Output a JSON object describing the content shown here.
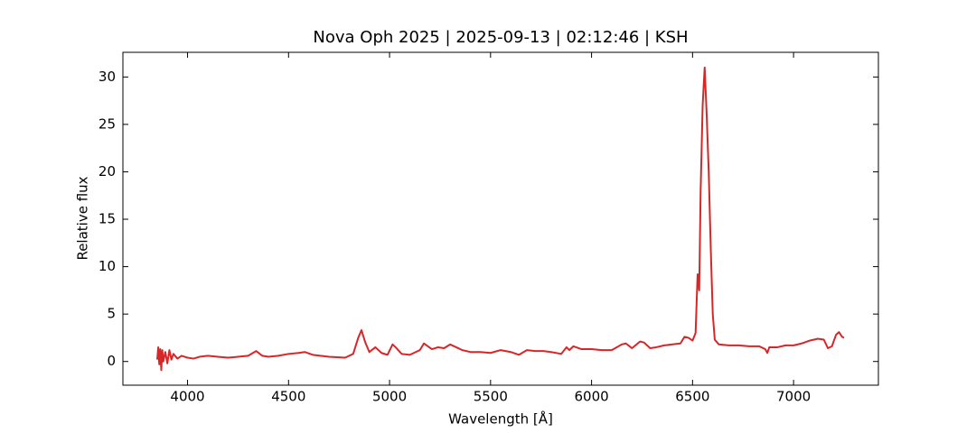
{
  "chart_data": {
    "type": "line",
    "title": "Nova Oph 2025 | 2025-09-13 | 02:12:46 | KSH",
    "x_label": "Wavelength [Å]",
    "y_label": "Relative flux",
    "color": "#d62728",
    "x": [
      3850,
      3855,
      3860,
      3865,
      3870,
      3875,
      3880,
      3890,
      3900,
      3910,
      3920,
      3930,
      3950,
      3970,
      4000,
      4030,
      4060,
      4100,
      4150,
      4200,
      4250,
      4300,
      4340,
      4370,
      4400,
      4450,
      4500,
      4550,
      4580,
      4620,
      4700,
      4780,
      4820,
      4845,
      4861,
      4880,
      4900,
      4930,
      4960,
      4990,
      5015,
      5030,
      5060,
      5100,
      5150,
      5170,
      5190,
      5210,
      5240,
      5270,
      5300,
      5330,
      5360,
      5400,
      5450,
      5500,
      5550,
      5600,
      5640,
      5680,
      5720,
      5760,
      5800,
      5850,
      5876,
      5890,
      5910,
      5950,
      6000,
      6050,
      6100,
      6150,
      6170,
      6200,
      6240,
      6260,
      6290,
      6320,
      6360,
      6400,
      6440,
      6460,
      6480,
      6500,
      6515,
      6525,
      6533,
      6540,
      6550,
      6560,
      6570,
      6580,
      6590,
      6600,
      6610,
      6630,
      6680,
      6730,
      6780,
      6830,
      6860,
      6870,
      6880,
      6920,
      6960,
      7000,
      7040,
      7080,
      7120,
      7150,
      7170,
      7190,
      7210,
      7225,
      7240,
      7250
    ],
    "values": [
      0.2,
      1.5,
      -0.3,
      1.3,
      -0.9,
      1.2,
      0.0,
      1.0,
      -0.2,
      1.2,
      0.2,
      0.8,
      0.3,
      0.6,
      0.4,
      0.3,
      0.5,
      0.6,
      0.5,
      0.4,
      0.5,
      0.6,
      1.1,
      0.6,
      0.5,
      0.6,
      0.8,
      0.9,
      1.0,
      0.7,
      0.5,
      0.4,
      0.8,
      2.5,
      3.3,
      2.0,
      1.0,
      1.5,
      0.9,
      0.7,
      1.8,
      1.5,
      0.8,
      0.7,
      1.2,
      1.9,
      1.6,
      1.3,
      1.5,
      1.4,
      1.8,
      1.5,
      1.2,
      1.0,
      1.0,
      0.9,
      1.2,
      1.0,
      0.7,
      1.2,
      1.1,
      1.1,
      1.0,
      0.8,
      1.5,
      1.2,
      1.6,
      1.3,
      1.3,
      1.2,
      1.2,
      1.8,
      1.9,
      1.4,
      2.1,
      2.0,
      1.4,
      1.5,
      1.7,
      1.8,
      1.9,
      2.6,
      2.5,
      2.2,
      3.0,
      9.2,
      7.5,
      18,
      27,
      31.0,
      26,
      20,
      12,
      5,
      2.3,
      1.8,
      1.7,
      1.7,
      1.6,
      1.6,
      1.3,
      0.9,
      1.5,
      1.5,
      1.7,
      1.7,
      1.9,
      2.2,
      2.4,
      2.3,
      1.4,
      1.6,
      2.8,
      3.1,
      2.6,
      2.5
    ],
    "xlim": [
      3680,
      7420
    ],
    "xticks": [
      4000,
      4500,
      5000,
      5500,
      6000,
      6500,
      7000
    ],
    "ylim": [
      -2.5,
      32.6
    ],
    "yticks": [
      0,
      5,
      10,
      15,
      20,
      25,
      30
    ]
  }
}
